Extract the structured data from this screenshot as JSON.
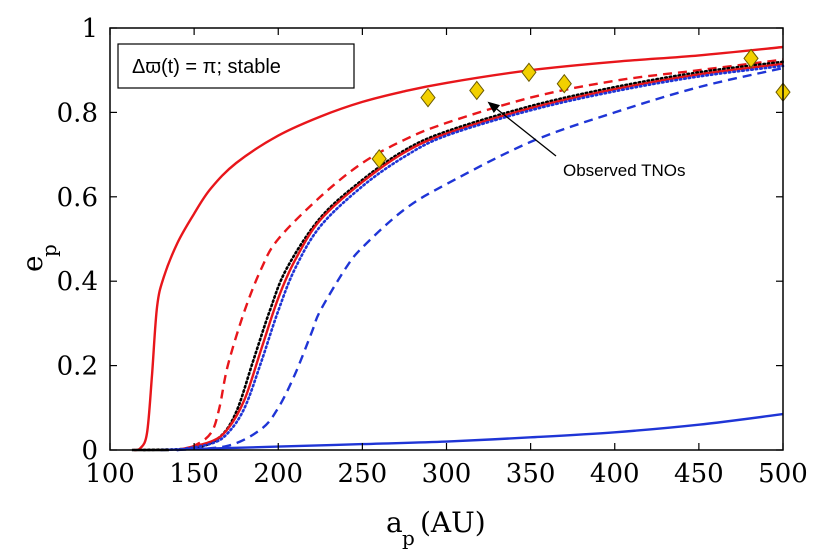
{
  "chart_data": {
    "type": "line",
    "title": "",
    "xlabel_main": "a",
    "xlabel_sub": "p",
    "xlabel_unit": "(AU)",
    "ylabel_main": "e",
    "ylabel_sub": "p",
    "xlim": [
      100,
      500
    ],
    "ylim": [
      0,
      1
    ],
    "x_ticks": [
      100,
      150,
      200,
      250,
      300,
      350,
      400,
      450,
      500
    ],
    "y_ticks": [
      0,
      0.2,
      0.4,
      0.6,
      0.8,
      1
    ],
    "x_tick_labels": [
      "100",
      "150",
      "200",
      "250",
      "300",
      "350",
      "400",
      "450",
      "500"
    ],
    "y_tick_labels": [
      "0",
      "0.2",
      "0.4",
      "0.6",
      "0.8",
      "1"
    ],
    "legend_box": "Δϖ(t) = π; stable",
    "annotation": "Observed TNOs",
    "series": [
      {
        "name": "red-solid-upper",
        "color": "#e8161b",
        "dash": "solid",
        "x": [
          114,
          118,
          122,
          125,
          128,
          132,
          140,
          150,
          160,
          175,
          200,
          225,
          250,
          275,
          300,
          350,
          400,
          450,
          500
        ],
        "y": [
          0,
          0.004,
          0.04,
          0.18,
          0.34,
          0.41,
          0.49,
          0.56,
          0.62,
          0.68,
          0.745,
          0.79,
          0.825,
          0.85,
          0.87,
          0.9,
          0.92,
          0.935,
          0.955
        ]
      },
      {
        "name": "red-dashed",
        "color": "#e8161b",
        "dash": "dashed",
        "x": [
          140,
          150,
          160,
          165,
          170,
          180,
          190,
          200,
          225,
          250,
          275,
          300,
          350,
          400,
          450,
          500
        ],
        "y": [
          0,
          0.01,
          0.04,
          0.1,
          0.2,
          0.33,
          0.43,
          0.5,
          0.6,
          0.68,
          0.735,
          0.775,
          0.835,
          0.875,
          0.9,
          0.925
        ]
      },
      {
        "name": "black-dotted",
        "color": "#000000",
        "dash": "dotted",
        "x": [
          120,
          150,
          165,
          175,
          185,
          195,
          205,
          225,
          250,
          275,
          300,
          350,
          400,
          450,
          500
        ],
        "y": [
          0,
          0.005,
          0.03,
          0.09,
          0.21,
          0.33,
          0.43,
          0.55,
          0.64,
          0.71,
          0.755,
          0.815,
          0.86,
          0.895,
          0.92
        ]
      },
      {
        "name": "red-solid-middle",
        "color": "#e8161b",
        "dash": "solid",
        "x": [
          140,
          160,
          170,
          180,
          190,
          200,
          210,
          225,
          250,
          275,
          300,
          350,
          400,
          450,
          500
        ],
        "y": [
          0,
          0.02,
          0.05,
          0.12,
          0.24,
          0.36,
          0.45,
          0.545,
          0.635,
          0.705,
          0.75,
          0.81,
          0.855,
          0.89,
          0.915
        ]
      },
      {
        "name": "blue-dotted",
        "color": "#1f35d6",
        "dash": "dotted",
        "x": [
          140,
          160,
          170,
          180,
          190,
          200,
          210,
          225,
          250,
          275,
          300,
          350,
          400,
          450,
          500
        ],
        "y": [
          0,
          0.015,
          0.04,
          0.1,
          0.21,
          0.33,
          0.43,
          0.53,
          0.625,
          0.695,
          0.745,
          0.805,
          0.85,
          0.885,
          0.91
        ]
      },
      {
        "name": "blue-dashed",
        "color": "#1f35d6",
        "dash": "dashed",
        "x": [
          140,
          170,
          190,
          200,
          210,
          220,
          225,
          240,
          250,
          275,
          300,
          350,
          400,
          450,
          500
        ],
        "y": [
          0,
          0.01,
          0.05,
          0.1,
          0.18,
          0.28,
          0.33,
          0.43,
          0.48,
          0.57,
          0.63,
          0.73,
          0.8,
          0.86,
          0.905
        ]
      },
      {
        "name": "blue-solid-lower",
        "color": "#1f35d6",
        "dash": "solid",
        "x": [
          130,
          200,
          250,
          300,
          350,
          400,
          450,
          500
        ],
        "y": [
          0,
          0.008,
          0.014,
          0.02,
          0.03,
          0.042,
          0.06,
          0.085
        ]
      },
      {
        "name": "black-solid-baseline",
        "color": "#000000",
        "dash": "solid",
        "x": [
          113,
          135
        ],
        "y": [
          0,
          0
        ]
      }
    ],
    "points": {
      "name": "Observed TNOs",
      "marker": "diamond",
      "color": "#f2d000",
      "x": [
        260,
        289,
        318,
        349,
        370,
        481,
        500
      ],
      "y": [
        0.69,
        0.835,
        0.852,
        0.895,
        0.868,
        0.928,
        0.848
      ]
    },
    "arrow": {
      "from": [
        345,
        0.79
      ],
      "to": [
        322,
        0.835
      ]
    }
  }
}
